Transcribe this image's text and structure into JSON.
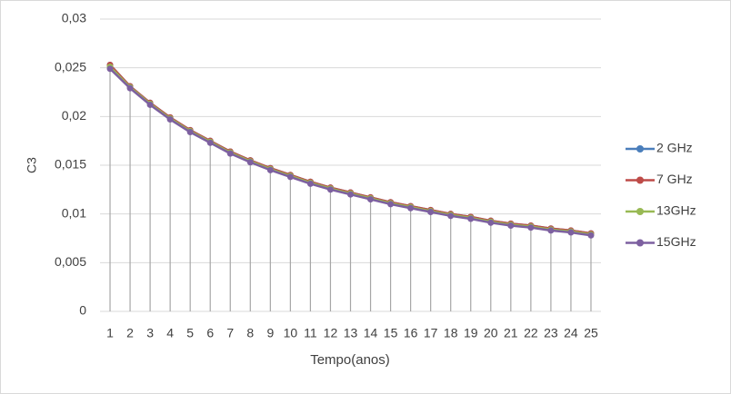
{
  "chart_data": {
    "type": "line",
    "ylabel": "C3",
    "xlabel": "Tempo(anos)",
    "categories": [
      "1",
      "2",
      "3",
      "4",
      "5",
      "6",
      "7",
      "8",
      "9",
      "10",
      "11",
      "12",
      "13",
      "14",
      "15",
      "16",
      "17",
      "18",
      "19",
      "20",
      "21",
      "22",
      "23",
      "24",
      "25"
    ],
    "series": [
      {
        "name": "2 GHz",
        "color": "#4a7ebb",
        "values": [
          0.0253,
          0.0231,
          0.0214,
          0.0199,
          0.0186,
          0.0175,
          0.0164,
          0.0155,
          0.0147,
          0.014,
          0.0133,
          0.0127,
          0.0122,
          0.0117,
          0.0112,
          0.0108,
          0.0104,
          0.01,
          0.0097,
          0.0093,
          0.009,
          0.0088,
          0.0085,
          0.0083,
          0.008
        ]
      },
      {
        "name": "7 GHz",
        "color": "#be4b48",
        "values": [
          0.0253,
          0.0231,
          0.0214,
          0.0199,
          0.0186,
          0.0175,
          0.0164,
          0.0155,
          0.0147,
          0.014,
          0.0133,
          0.0127,
          0.0122,
          0.0117,
          0.0112,
          0.0108,
          0.0104,
          0.01,
          0.0097,
          0.0093,
          0.009,
          0.0088,
          0.0085,
          0.0083,
          0.008
        ]
      },
      {
        "name": "13GHz",
        "color": "#98b954",
        "values": [
          0.0251,
          0.023,
          0.0213,
          0.0198,
          0.0185,
          0.0174,
          0.0163,
          0.0154,
          0.0146,
          0.0139,
          0.0132,
          0.0126,
          0.0121,
          0.0116,
          0.0111,
          0.0107,
          0.0103,
          0.0099,
          0.0096,
          0.0092,
          0.0089,
          0.0087,
          0.0084,
          0.0082,
          0.0079
        ]
      },
      {
        "name": "15GHz",
        "color": "#7d60a0",
        "values": [
          0.0249,
          0.0229,
          0.0212,
          0.0197,
          0.0184,
          0.0173,
          0.0162,
          0.0153,
          0.0145,
          0.0138,
          0.0131,
          0.0125,
          0.012,
          0.0115,
          0.011,
          0.0106,
          0.0102,
          0.0098,
          0.0095,
          0.0091,
          0.0088,
          0.0086,
          0.0083,
          0.0081,
          0.0078
        ]
      }
    ],
    "ylim": [
      0,
      0.03
    ],
    "yticks": [
      0,
      {
        "value": 0.005,
        "label": "0,005"
      },
      {
        "value": 0.01,
        "label": "0,01"
      },
      {
        "value": 0.015,
        "label": "0,015"
      },
      {
        "value": 0.02,
        "label": "0,02"
      },
      {
        "value": 0.025,
        "label": "0,025"
      },
      {
        "value": 0.03,
        "label": "0,03"
      }
    ],
    "grid": true,
    "drop_lines": true,
    "legend": "right"
  }
}
